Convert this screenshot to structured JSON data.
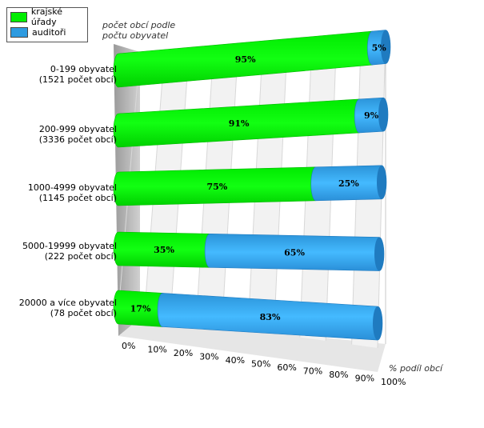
{
  "chart_data": {
    "type": "bar",
    "orientation": "horizontal",
    "stacked": true,
    "ylabel": "počet obcí podle\npočtu obyvatel",
    "xlabel": "% podíl obcí",
    "xlim": [
      0,
      100
    ],
    "x_ticks": [
      "0%",
      "10%",
      "20%",
      "30%",
      "40%",
      "50%",
      "60%",
      "70%",
      "80%",
      "90%",
      "100%"
    ],
    "categories": [
      [
        "0-199 obyvatel",
        "(1521 počet obcí)"
      ],
      [
        "200-999 obyvatel",
        "(3336 počet obcí)"
      ],
      [
        "1000-4999 obyvatel",
        "(1145 počet obcí)"
      ],
      [
        "5000-19999 obyvatel",
        "(222 počet obcí)"
      ],
      [
        "20000 a více obyvatel",
        "(78 počet obcí)"
      ]
    ],
    "series": [
      {
        "name": "krajské úřady",
        "values": [
          95,
          91,
          75,
          35,
          17
        ],
        "color": "#00ee00"
      },
      {
        "name": "auditoři",
        "values": [
          5,
          9,
          25,
          65,
          83
        ],
        "color": "#2e9be0"
      }
    ],
    "grid": true,
    "legend_position": "top-left"
  }
}
